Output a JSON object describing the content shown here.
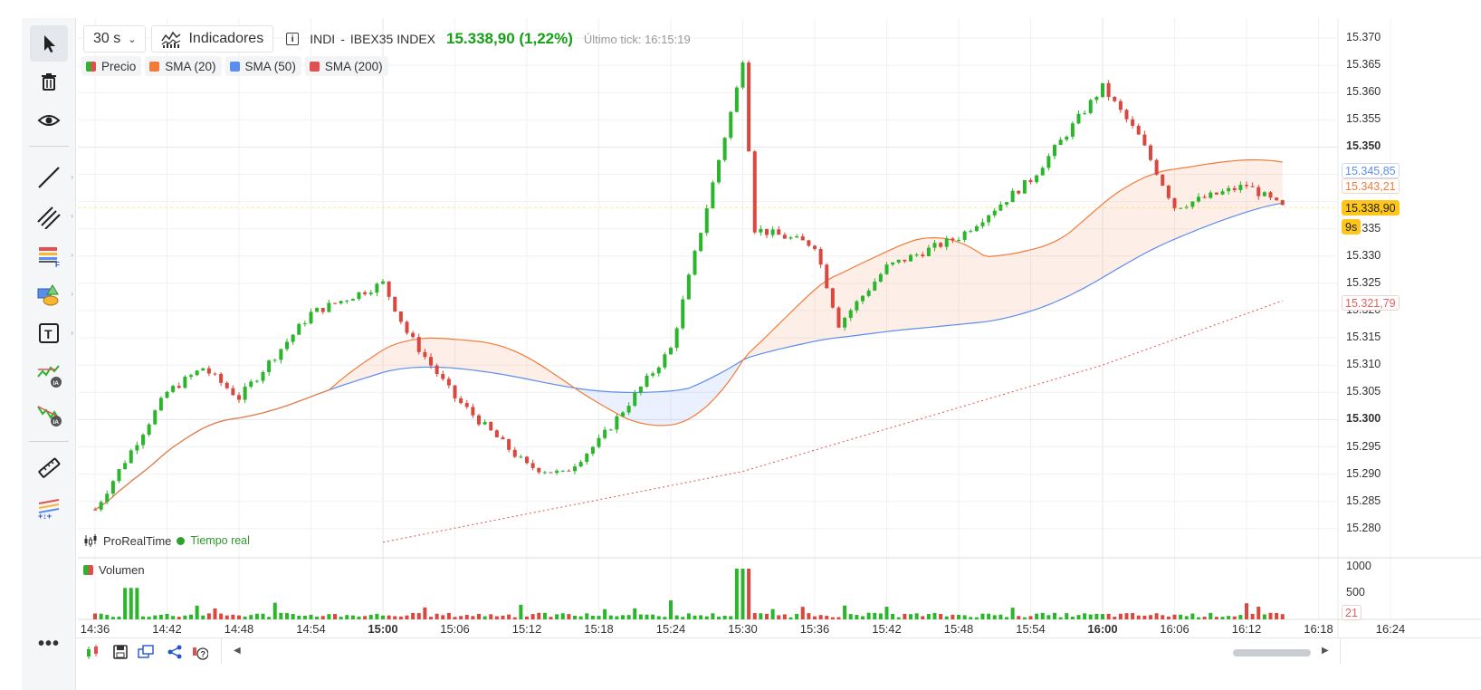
{
  "toolbar": {
    "timeframe": "30 s",
    "indicators_label": "Indicadores",
    "symbol_code": "INDI",
    "symbol_sep": "-",
    "symbol_name": "IBEX35 INDEX",
    "price_change": "15.338,90 (1,22%)",
    "last_tick": "Último tick: 16:15:19"
  },
  "legend": {
    "price": "Precio",
    "sma20": "SMA (20)",
    "sma50": "SMA (50)",
    "sma200": "SMA (200)"
  },
  "colors": {
    "up": "#2bb52b",
    "down": "#d9473f",
    "sma20": "#f27b3a",
    "sma50": "#5b8def",
    "sma200": "#e05050",
    "badge": "#ffc61a"
  },
  "watermark": {
    "brand": "ProRealTime",
    "status": "Tiempo real"
  },
  "volume_legend": "Volumen",
  "tags": {
    "sma50": "15.345,85",
    "sma20": "15.343,21",
    "last": "15.338,90",
    "timer": "9s",
    "sma200": "15.321,79",
    "volume_last": "21"
  },
  "price_axis": [
    "15.370",
    "15.365",
    "15.360",
    "15.355",
    "15.350",
    "15.345",
    "15.340",
    "15.335",
    "15.330",
    "15.325",
    "15.320",
    "15.315",
    "15.310",
    "15.305",
    "15.300",
    "15.295",
    "15.290",
    "15.285",
    "15.280"
  ],
  "volume_axis": [
    "1000",
    "500"
  ],
  "time_axis": [
    "14:36",
    "14:42",
    "14:48",
    "14:54",
    "15:00",
    "15:06",
    "15:12",
    "15:18",
    "15:24",
    "15:30",
    "15:36",
    "15:42",
    "15:48",
    "15:54",
    "16:00",
    "16:06",
    "16:12",
    "16:18",
    "16:24"
  ],
  "bold_times": [
    "15:00",
    "16:00"
  ],
  "bold_prices": [
    "15.350",
    "15.300"
  ],
  "tools": [
    "cursor-icon",
    "trash-icon",
    "eye-icon",
    "line-icon",
    "parallel-lines-icon",
    "fibonacci-icon",
    "shapes-icon",
    "text-icon",
    "ai-pattern-up-icon",
    "ai-pattern-down-icon",
    "ruler-icon",
    "position-icon"
  ],
  "chart_data": {
    "type": "candlestick",
    "x_range": [
      "14:36",
      "16:15"
    ],
    "ylim": [
      15.278,
      15.372
    ],
    "key_points": [
      {
        "time": "14:36",
        "close": 15.2835
      },
      {
        "time": "14:42",
        "close": 15.305
      },
      {
        "time": "14:45",
        "close": 15.3095
      },
      {
        "time": "14:48",
        "close": 15.304
      },
      {
        "time": "14:54",
        "close": 15.3195
      },
      {
        "time": "15:00",
        "close": 15.325
      },
      {
        "time": "15:02",
        "close": 15.316
      },
      {
        "time": "15:06",
        "close": 15.304
      },
      {
        "time": "15:12",
        "close": 15.2915
      },
      {
        "time": "15:15",
        "close": 15.29
      },
      {
        "time": "15:18",
        "close": 15.296
      },
      {
        "time": "15:24",
        "close": 15.313
      },
      {
        "time": "15:30",
        "close": 15.365
      },
      {
        "time": "15:31",
        "close": 15.335
      },
      {
        "time": "15:36",
        "close": 15.332
      },
      {
        "time": "15:38",
        "close": 15.3175
      },
      {
        "time": "15:42",
        "close": 15.328
      },
      {
        "time": "15:48",
        "close": 15.3335
      },
      {
        "time": "15:54",
        "close": 15.344
      },
      {
        "time": "16:00",
        "close": 15.361
      },
      {
        "time": "16:03",
        "close": 15.352
      },
      {
        "time": "16:06",
        "close": 15.339
      },
      {
        "time": "16:12",
        "close": 15.343
      },
      {
        "time": "16:15",
        "close": 15.3389
      }
    ],
    "last_values": {
      "price": 15.3389,
      "sma20": 15.34321,
      "sma50": 15.34585,
      "sma200": 15.32179
    },
    "volume_max": 1000
  }
}
